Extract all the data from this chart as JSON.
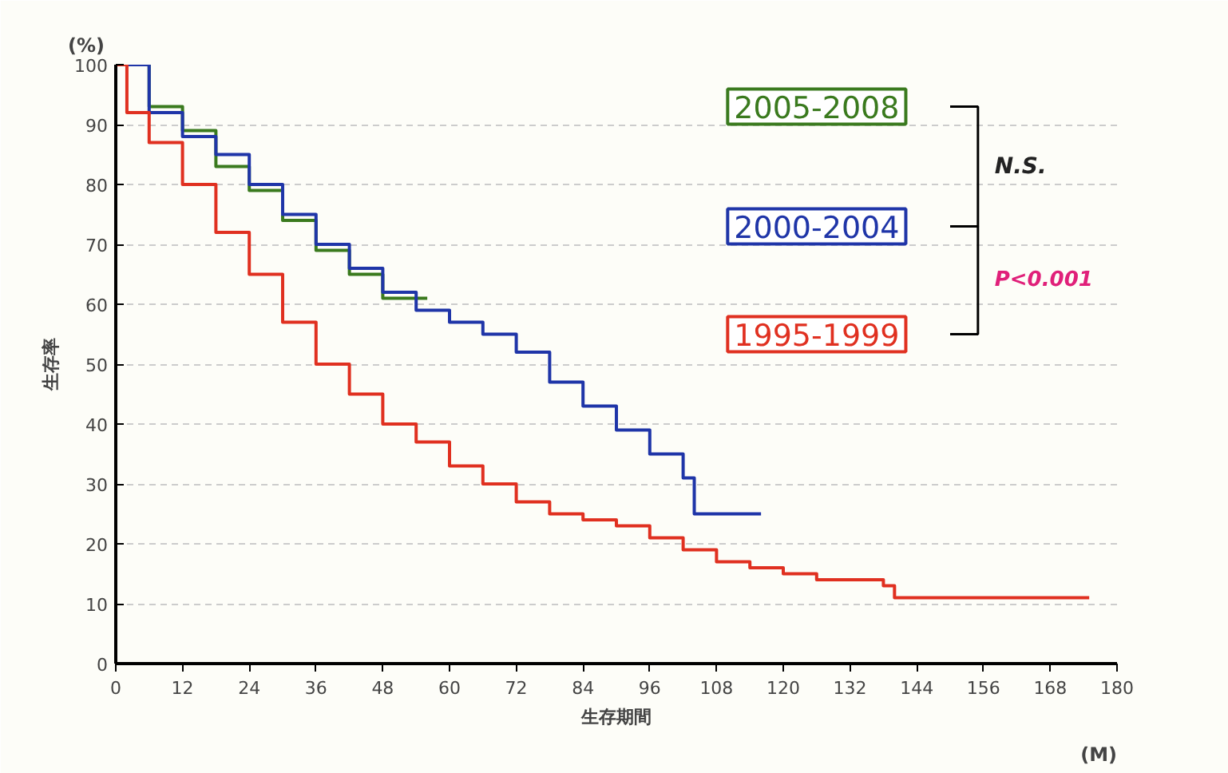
{
  "chart_data": {
    "type": "step",
    "xlabel": "生存期間",
    "ylabel": "生存率",
    "xlim": [
      0,
      180
    ],
    "ylim": [
      0,
      100
    ],
    "xticks": [
      0,
      12,
      24,
      36,
      48,
      60,
      72,
      84,
      96,
      108,
      120,
      132,
      144,
      156,
      168,
      180
    ],
    "yticks": [
      0,
      10,
      20,
      30,
      40,
      50,
      60,
      70,
      80,
      90,
      100
    ],
    "grid": "y",
    "legend": "top right",
    "line_style": "solid",
    "series": [
      {
        "name": "2005-2008",
        "color": "#3a7a1e",
        "x": [
          0,
          6,
          12,
          18,
          24,
          30,
          36,
          42,
          48,
          56
        ],
        "values": [
          100,
          93,
          89,
          83,
          79,
          74,
          69,
          65,
          61,
          61
        ]
      },
      {
        "name": "2000-2004",
        "color": "#1f35a8",
        "x": [
          0,
          6,
          12,
          18,
          24,
          30,
          36,
          42,
          48,
          54,
          60,
          66,
          72,
          78,
          84,
          90,
          96,
          102,
          104,
          116
        ],
        "values": [
          100,
          92,
          88,
          85,
          80,
          75,
          70,
          66,
          62,
          59,
          57,
          55,
          52,
          47,
          43,
          39,
          35,
          31,
          25,
          25
        ]
      },
      {
        "name": "1995-1999",
        "color": "#e03020",
        "x": [
          0,
          2,
          6,
          12,
          18,
          24,
          30,
          36,
          42,
          48,
          54,
          60,
          66,
          72,
          78,
          84,
          90,
          96,
          102,
          108,
          114,
          120,
          126,
          132,
          138,
          140,
          175
        ],
        "values": [
          100,
          92,
          87,
          80,
          72,
          65,
          57,
          50,
          45,
          40,
          37,
          33,
          30,
          27,
          25,
          24,
          23,
          21,
          19,
          17,
          16,
          15,
          14,
          14,
          13,
          11,
          11
        ]
      }
    ],
    "annotations": [
      "(%)",
      "(M)",
      "N.S.",
      "P<0.001"
    ]
  }
}
